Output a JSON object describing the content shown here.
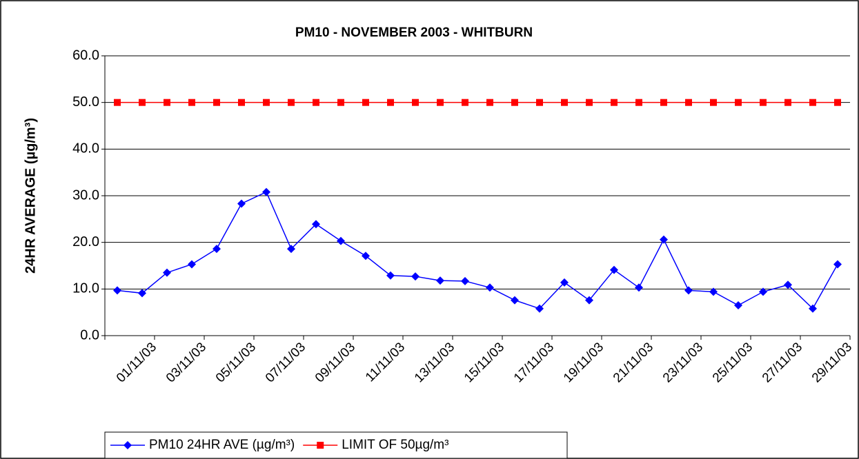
{
  "chart_data": {
    "type": "line",
    "title": "PM10 - NOVEMBER 2003 - WHITBURN",
    "y_label": "24HR AVERAGE (µg/m³)",
    "categories": [
      "01/11/03",
      null,
      "03/11/03",
      null,
      "05/11/03",
      null,
      "07/11/03",
      null,
      "09/11/03",
      null,
      "11/11/03",
      null,
      "13/11/03",
      null,
      "15/11/03",
      null,
      "17/11/03",
      null,
      "19/11/03",
      null,
      "21/11/03",
      null,
      "23/11/03",
      null,
      "25/11/03",
      null,
      "27/11/03",
      null,
      "29/11/03",
      null
    ],
    "series": [
      {
        "name": "PM10 24HR AVE (µg/m³)",
        "color": "#0000ff",
        "marker": "diamond",
        "values": [
          9.7,
          9.1,
          13.5,
          15.3,
          18.6,
          28.3,
          30.8,
          18.6,
          23.9,
          20.3,
          17.1,
          12.9,
          12.7,
          11.8,
          11.7,
          10.3,
          7.6,
          5.8,
          11.4,
          7.6,
          14.1,
          10.3,
          20.6,
          9.7,
          9.4,
          6.5,
          9.4,
          10.9,
          5.8,
          15.3
        ]
      },
      {
        "name": "LIMIT OF 50µg/m³",
        "color": "#ff0000",
        "marker": "square",
        "values": [
          50,
          50,
          50,
          50,
          50,
          50,
          50,
          50,
          50,
          50,
          50,
          50,
          50,
          50,
          50,
          50,
          50,
          50,
          50,
          50,
          50,
          50,
          50,
          50,
          50,
          50,
          50,
          50,
          50,
          50
        ]
      }
    ],
    "ylim": [
      0,
      60
    ],
    "yticks": [
      {
        "value": 0,
        "label": "0.0"
      },
      {
        "value": 10,
        "label": "10.0"
      },
      {
        "value": 20,
        "label": "20.0"
      },
      {
        "value": 30,
        "label": "30.0"
      },
      {
        "value": 40,
        "label": "40.0"
      },
      {
        "value": 50,
        "label": "50.0"
      },
      {
        "value": 60,
        "label": "60.0"
      }
    ],
    "grid": true,
    "legend": "bottom-left"
  }
}
